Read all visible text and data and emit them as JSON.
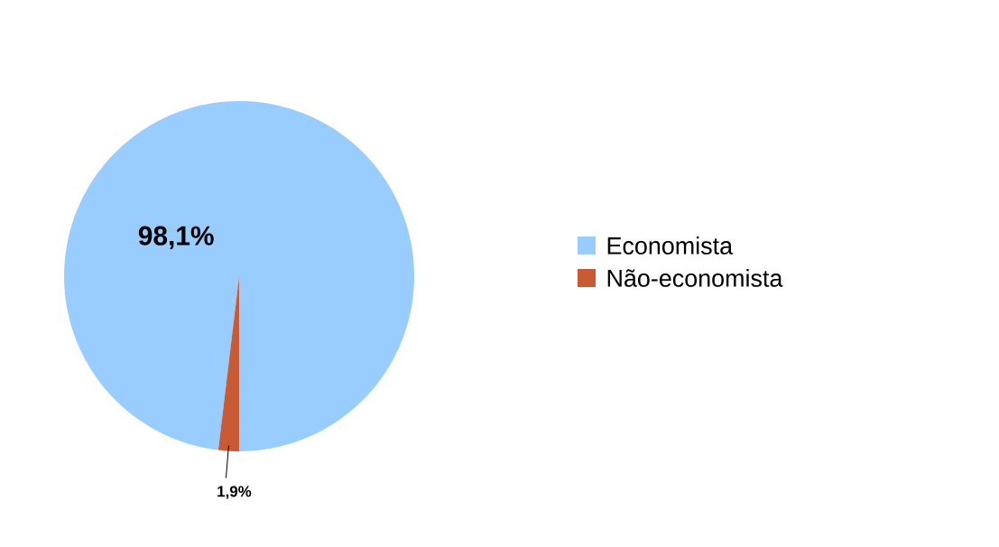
{
  "chart_data": {
    "type": "pie",
    "categories": [
      "Economista",
      "Não-economista"
    ],
    "values": [
      98.1,
      1.9
    ],
    "colors": [
      "#99ccff",
      "#c85a35"
    ],
    "value_labels": [
      "98,1%",
      "1,9%"
    ],
    "legend": "right"
  }
}
